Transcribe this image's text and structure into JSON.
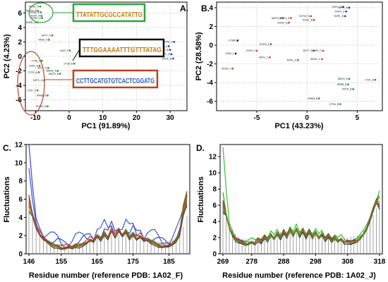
{
  "chart_data": [
    {
      "panel": "A.",
      "type": "scatter",
      "xlabel": "PC1 (91.89%)",
      "ylabel": "PC2 (4.23%)",
      "xlim": [
        -13,
        35
      ],
      "ylim": [
        -7.5,
        7.5
      ],
      "xticks": [
        -10,
        0,
        10,
        20,
        30
      ],
      "yticks": [
        -6,
        -4,
        -2,
        0,
        2,
        4,
        6
      ],
      "grid": "dotted",
      "points": [
        {
          "label": "5GSD_A",
          "x": -8.6,
          "y": 6.9,
          "color": "#2b8c2b"
        },
        {
          "label": "5GTW_A",
          "x": -9.3,
          "y": 6.3,
          "color": "#2b8c2b"
        },
        {
          "label": "5GSD_A",
          "x": -8.4,
          "y": 6.1,
          "color": "#2b8c2b"
        },
        {
          "label": "5GSV_A",
          "x": -8.2,
          "y": 5.6,
          "color": "#2b8c2b"
        },
        {
          "label": "5GSV_A",
          "x": -8.0,
          "y": 5.3,
          "color": "#2b8c2b"
        },
        {
          "label": "5HBB_A",
          "x": -9.5,
          "y": 4.7,
          "color": "#2b8c2b"
        },
        {
          "label": "2MTT_A",
          "x": -5.0,
          "y": 2.9,
          "color": "#2b8c2b"
        },
        {
          "label": "4A5S_A",
          "x": -6.0,
          "y": 2.3,
          "color": "#2b8c2b"
        },
        {
          "label": "1A02_F",
          "x": 0.2,
          "y": 0.8,
          "color": "#2b8c2b"
        },
        {
          "label": "1YS6_A",
          "x": -8.1,
          "y": -0.6,
          "color": "#2b8c2b"
        },
        {
          "label": "1S9D_A",
          "x": -8.8,
          "y": -1.3,
          "color": "#2b8c2b"
        },
        {
          "label": "2M7T_A",
          "x": -6.2,
          "y": -1.6,
          "color": "#2b8c2b"
        },
        {
          "label": "1TZS_A",
          "x": -9.0,
          "y": -2.2,
          "color": "#2b8c2b"
        },
        {
          "label": "5MO3_A",
          "x": -3.4,
          "y": -2.0,
          "color": "#2b8c2b"
        },
        {
          "label": "5MO3_B",
          "x": -2.7,
          "y": -2.4,
          "color": "#2b8c2b"
        },
        {
          "label": "5VPC_A",
          "x": -7.4,
          "y": -3.3,
          "color": "#2b8c2b"
        },
        {
          "label": "1T2K_C",
          "x": -9.4,
          "y": -4.7,
          "color": "#2b8c2b"
        },
        {
          "label": "5HBB_B",
          "x": -6.4,
          "y": -5.4,
          "color": "#2b8c2b"
        },
        {
          "label": "1YS6_B",
          "x": 1.5,
          "y": -1.0,
          "color": "#2b8c2b"
        },
        {
          "label": "5GSD_B",
          "x": -6.4,
          "y": -6.9,
          "color": "#2b8c2b"
        },
        {
          "label": "5VPD_A",
          "x": 29.6,
          "y": 1.4,
          "color": "#20329c"
        },
        {
          "label": "5VPD_B",
          "x": 30.0,
          "y": 0.9,
          "color": "#20329c"
        },
        {
          "label": "5VPC_B",
          "x": 30.4,
          "y": 0.3,
          "color": "#20329c"
        },
        {
          "label": "5VPE_B",
          "x": 30.9,
          "y": -0.3,
          "color": "#20329c"
        },
        {
          "label": "5VPE_A",
          "x": 31.2,
          "y": 2.0,
          "color": "#20329c"
        }
      ],
      "annotations": [
        {
          "label": "TTATATTGCGCCATATTG",
          "frame": "#2aa63a"
        },
        {
          "label": "TTTGGAAAATTTGTTTATAG",
          "frame": "#111111"
        },
        {
          "label": "CCTTGCATGTGTCACTCGGATG",
          "frame": "#b8441f"
        }
      ]
    },
    {
      "panel": "B.",
      "type": "scatter",
      "xlabel": "PC1 (43.23%)",
      "ylabel": "PC2 (28.58%)",
      "xlim": [
        -9,
        7.5
      ],
      "ylim": [
        -7,
        4.6
      ],
      "xticks": [
        -5,
        0,
        5
      ],
      "yticks": [
        -6,
        -4,
        -2,
        0,
        2,
        4
      ],
      "grid": "dotted",
      "points": [
        {
          "label": "5VPC_D",
          "x": 3.6,
          "y": 4.1,
          "color": "#20329c"
        },
        {
          "label": "5VPE_B",
          "x": 4.2,
          "y": 4.0,
          "color": "#20329c"
        },
        {
          "label": "5VPD_D",
          "x": 3.9,
          "y": 3.6,
          "color": "#20329c"
        },
        {
          "label": "5VPE_D",
          "x": 3.8,
          "y": 3.1,
          "color": "#20329c"
        },
        {
          "label": "5GTW_B",
          "x": 0.4,
          "y": 3.1,
          "color": "#c43a2b"
        },
        {
          "label": "5GSV_B",
          "x": 0.7,
          "y": 2.7,
          "color": "#c43a2b"
        },
        {
          "label": "5MO2_B",
          "x": -2.4,
          "y": 2.9,
          "color": "#c43a2b"
        },
        {
          "label": "5MO3_D",
          "x": -1.6,
          "y": 2.9,
          "color": "#c43a2b"
        },
        {
          "label": "5GSD_B",
          "x": -1.8,
          "y": 2.4,
          "color": "#c43a2b"
        },
        {
          "label": "1YS6D",
          "x": -6.9,
          "y": 0.5,
          "color": "#111111"
        },
        {
          "label": "5CDS_F",
          "x": -3.6,
          "y": 0.1,
          "color": "#c43a2b"
        },
        {
          "label": "1SGD_J",
          "x": -5.0,
          "y": -0.6,
          "color": "#c43a2b"
        },
        {
          "label": "1S9K_L",
          "x": -7.1,
          "y": -0.9,
          "color": "#111111"
        },
        {
          "label": "2M7T_D",
          "x": 0.7,
          "y": -0.6,
          "color": "#c43a2b"
        },
        {
          "label": "5VPE_C",
          "x": 1.6,
          "y": -0.6,
          "color": "#c43a2b"
        },
        {
          "label": "5HFE_C",
          "x": -3.7,
          "y": -1.3,
          "color": "#c43a2b"
        },
        {
          "label": "5HOE_J",
          "x": -7.4,
          "y": -2.5,
          "color": "#c43a2b"
        },
        {
          "label": "5VPE_D",
          "x": -0.9,
          "y": -1.6,
          "color": "#c43a2b"
        },
        {
          "label": "5DHG_C",
          "x": 1.5,
          "y": -1.5,
          "color": "#c43a2b"
        },
        {
          "label": "5MO3_E",
          "x": 4.2,
          "y": -3.6,
          "color": "#2b8c2b"
        },
        {
          "label": "1T2K_B",
          "x": 6.8,
          "y": -3.7,
          "color": "#2b8c2b"
        },
        {
          "label": "5HBB_B",
          "x": 4.1,
          "y": -4.2,
          "color": "#2b8c2b"
        },
        {
          "label": "2M7H_B",
          "x": 4.6,
          "y": -4.7,
          "color": "#2b8c2b"
        },
        {
          "label": "5HBB_B",
          "x": 1.2,
          "y": -5.7,
          "color": "#2b8c2b"
        },
        {
          "label": "5TS6_B",
          "x": 3.3,
          "y": -6.3,
          "color": "#2b8c2b"
        }
      ]
    },
    {
      "panel": "C.",
      "type": "line",
      "xlabel": "Residue number (reference PDB: 1A02_F)",
      "ylabel": "Fluctuations",
      "x_start": 146,
      "x_end": 190,
      "xticks": [
        146,
        155,
        165,
        175,
        185
      ],
      "ylim": [
        0,
        12
      ],
      "yticks": [
        0,
        2,
        4,
        6,
        8,
        10,
        12
      ],
      "bars_value": [
        5.8,
        4.6,
        3.2,
        2.4,
        2.0,
        1.6,
        1.3,
        1.2,
        1.1,
        1.1,
        1.0,
        1.0,
        1.0,
        1.1,
        1.1,
        1.2,
        1.3,
        1.4,
        1.5,
        1.7,
        1.8,
        1.9,
        2.0,
        2.0,
        2.1,
        2.1,
        2.0,
        2.0,
        1.9,
        1.9,
        1.8,
        1.8,
        1.6,
        1.5,
        1.4,
        1.3,
        1.3,
        1.2,
        1.3,
        1.4,
        1.5,
        1.8,
        2.2,
        3.0,
        4.2
      ],
      "base_profile": [
        5.6,
        4.3,
        2.9,
        2.1,
        1.6,
        1.3,
        1.0,
        0.8,
        0.8,
        0.6,
        0.6,
        0.7,
        0.6,
        0.8,
        0.8,
        1.0,
        1.2,
        1.5,
        1.3,
        1.9,
        1.5,
        2.2,
        1.7,
        2.6,
        1.8,
        2.5,
        1.9,
        2.4,
        1.7,
        2.2,
        1.6,
        1.9,
        1.4,
        1.5,
        1.2,
        1.1,
        0.9,
        0.8,
        0.8,
        0.8,
        1.0,
        1.4,
        2.2,
        3.6,
        5.5
      ],
      "series": [
        {
          "color": "#3a3ad6",
          "offset": 1.0,
          "start_peak": 12.0,
          "end_peak": 5.2
        },
        {
          "color": "#2f55c8",
          "offset": 1.6,
          "start_peak": 9.4,
          "end_peak": 6.4
        },
        {
          "color": "#8a1a1a",
          "offset": 0.2,
          "start_peak": 6.3,
          "end_peak": 6.5
        },
        {
          "color": "#b23a3a",
          "offset": 0.4,
          "start_peak": 6.0,
          "end_peak": 5.6
        },
        {
          "color": "#d2691e",
          "offset": 0.1,
          "start_peak": 5.7,
          "end_peak": 6.2
        },
        {
          "color": "#2e8b2e",
          "offset": 0.3,
          "start_peak": 5.2,
          "end_peak": 6.7
        },
        {
          "color": "#6b8e23",
          "offset": 0.0,
          "start_peak": 4.8,
          "end_peak": 5.8
        },
        {
          "color": "#8b6914",
          "offset": -0.1,
          "start_peak": 5.4,
          "end_peak": 6.0
        },
        {
          "color": "#444444",
          "offset": -0.2,
          "start_peak": 4.6,
          "end_peak": 5.4
        },
        {
          "color": "#a0522d",
          "offset": 0.2,
          "start_peak": 6.5,
          "end_peak": 6.9
        }
      ]
    },
    {
      "panel": "D.",
      "type": "line",
      "xlabel": "Residue number (reference PDB: 1A02_J)",
      "ylabel": "Fluctuations",
      "x_start": 269,
      "x_end": 318,
      "xticks": [
        269,
        278,
        288,
        298,
        308,
        318
      ],
      "ylim": [
        0,
        13.5
      ],
      "yticks": [
        0,
        2,
        4,
        6,
        8,
        10,
        12
      ],
      "bars_value": [
        6.4,
        5.2,
        3.9,
        3.0,
        2.4,
        2.1,
        1.9,
        1.8,
        1.8,
        1.9,
        1.9,
        2.0,
        2.1,
        2.2,
        2.3,
        2.4,
        2.5,
        2.6,
        2.7,
        2.8,
        2.8,
        2.9,
        2.9,
        2.9,
        2.9,
        2.8,
        2.8,
        2.7,
        2.7,
        2.6,
        2.5,
        2.4,
        2.3,
        2.3,
        2.2,
        2.2,
        2.1,
        2.1,
        2.0,
        2.0,
        2.1,
        2.2,
        2.3,
        2.5,
        2.9,
        3.4,
        4.0,
        4.8,
        5.6,
        6.4
      ],
      "base_profile": [
        6.2,
        4.8,
        3.2,
        2.4,
        1.8,
        1.6,
        1.4,
        1.2,
        1.2,
        1.4,
        1.3,
        1.8,
        1.5,
        2.1,
        1.6,
        2.3,
        1.8,
        2.6,
        2.0,
        2.8,
        2.1,
        3.0,
        2.2,
        3.1,
        2.2,
        3.0,
        2.1,
        2.8,
        2.0,
        2.6,
        1.9,
        2.5,
        1.8,
        2.3,
        1.6,
        2.0,
        1.5,
        1.8,
        1.4,
        1.5,
        1.4,
        1.5,
        1.6,
        1.9,
        2.4,
        3.2,
        4.3,
        5.5,
        6.5,
        7.0
      ],
      "series": [
        {
          "color": "#2fbf2f",
          "offset": 0.6,
          "start_peak": 13.2,
          "end_peak": 7.8
        },
        {
          "color": "#3a8a3a",
          "offset": 0.3,
          "start_peak": 7.6,
          "end_peak": 7.2
        },
        {
          "color": "#8a1a1a",
          "offset": 0.2,
          "start_peak": 6.6,
          "end_peak": 6.9
        },
        {
          "color": "#c0392b",
          "offset": 0.1,
          "start_peak": 6.0,
          "end_peak": 6.5
        },
        {
          "color": "#d2691e",
          "offset": 0.0,
          "start_peak": 5.6,
          "end_peak": 6.2
        },
        {
          "color": "#5a3a8a",
          "offset": -0.2,
          "start_peak": 5.3,
          "end_peak": 5.8
        },
        {
          "color": "#333333",
          "offset": -0.3,
          "start_peak": 5.0,
          "end_peak": 5.5
        },
        {
          "color": "#8b6914",
          "offset": 0.1,
          "start_peak": 6.3,
          "end_peak": 6.0
        },
        {
          "color": "#6b8e23",
          "offset": -0.1,
          "start_peak": 5.8,
          "end_peak": 7.0
        }
      ]
    }
  ]
}
